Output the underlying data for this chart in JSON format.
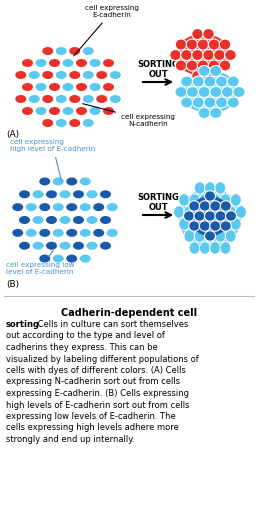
{
  "bg_color": "#ffffff",
  "title_text": "Cadherin-dependent cell",
  "caption_bold": "sorting.",
  "caption_rest": " Cells in culture can sort themselves out according to the type and level of cadherins they express. This can be visualized by labeling different populations of cells with dyes of different colors. (A) Cells expressing N-cadherin sort out from cells expressing E-cadherin. (B) Cells expressing high levels of E-cadherin sort out from cells expressing low levels of E-cadherin. The cells expressing high levels adhere more strongly and end up internally.",
  "red_color": "#e8312a",
  "blue_light_color": "#5bc8f0",
  "blue_dark_color": "#1a5aaa",
  "sorting_out_text": "SORTING\nOUT",
  "label_A_ecad": "cell expressing\nE-cadherin",
  "label_A_ncad": "cell expressing\nN-cadherin",
  "label_B_high": "cell expressing\nhigh level of E-cadherin",
  "label_B_low": "cell expressing low\nlevel of E-cadherin",
  "label_A": "(A)",
  "label_B": "(B)",
  "text_color": "#4a90c8",
  "arrow_color": "#000000"
}
